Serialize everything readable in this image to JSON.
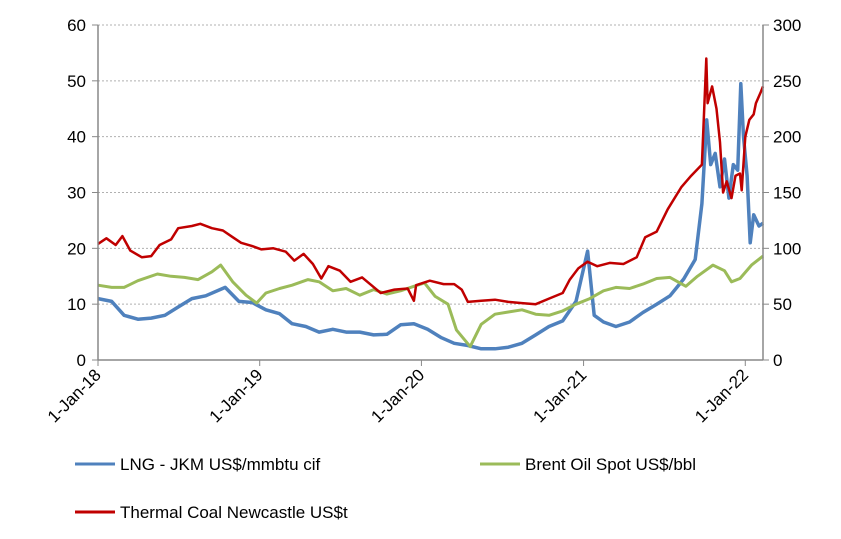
{
  "chart_data": {
    "type": "line",
    "title": "",
    "y_left": {
      "min": 0,
      "max": 60,
      "ticks": [
        "0",
        "10",
        "20",
        "30",
        "40",
        "50",
        "60"
      ]
    },
    "y_right": {
      "min": 0,
      "max": 300,
      "ticks": [
        "0",
        "50",
        "100",
        "150",
        "200",
        "250",
        "300"
      ]
    },
    "x_ticks": [
      "1-Jan-18",
      "1-Jan-19",
      "1-Jan-20",
      "1-Jan-21",
      "1-Jan-22"
    ],
    "x_range": [
      "2018-01-01",
      "2022-02-10"
    ],
    "grid": "horizontal dashed",
    "legend_position": "bottom",
    "series": [
      {
        "name": "LNG - JKM US$/mmbtu cif",
        "axis": "left",
        "color": "#4f81bd",
        "points": [
          [
            "2018-01-01",
            11
          ],
          [
            "2018-02-01",
            10.5
          ],
          [
            "2018-03-01",
            8
          ],
          [
            "2018-04-01",
            7.3
          ],
          [
            "2018-05-01",
            7.5
          ],
          [
            "2018-06-01",
            8
          ],
          [
            "2018-07-01",
            9.5
          ],
          [
            "2018-08-01",
            11
          ],
          [
            "2018-09-01",
            11.5
          ],
          [
            "2018-10-15",
            13
          ],
          [
            "2018-11-15",
            10.5
          ],
          [
            "2018-12-15",
            10.3
          ],
          [
            "2019-01-15",
            9
          ],
          [
            "2019-02-15",
            8.3
          ],
          [
            "2019-03-15",
            6.5
          ],
          [
            "2019-04-15",
            6
          ],
          [
            "2019-05-15",
            5
          ],
          [
            "2019-06-15",
            5.5
          ],
          [
            "2019-07-15",
            5
          ],
          [
            "2019-08-15",
            5
          ],
          [
            "2019-09-15",
            4.5
          ],
          [
            "2019-10-15",
            4.6
          ],
          [
            "2019-11-15",
            6.3
          ],
          [
            "2019-12-15",
            6.5
          ],
          [
            "2020-01-15",
            5.5
          ],
          [
            "2020-02-15",
            4
          ],
          [
            "2020-03-15",
            3
          ],
          [
            "2020-04-15",
            2.6
          ],
          [
            "2020-05-15",
            2
          ],
          [
            "2020-06-15",
            2
          ],
          [
            "2020-07-15",
            2.3
          ],
          [
            "2020-08-15",
            3
          ],
          [
            "2020-09-15",
            4.5
          ],
          [
            "2020-10-15",
            6
          ],
          [
            "2020-11-15",
            7
          ],
          [
            "2020-12-15",
            10.5
          ],
          [
            "2021-01-10",
            19.5
          ],
          [
            "2021-01-25",
            8
          ],
          [
            "2021-02-15",
            6.8
          ],
          [
            "2021-03-15",
            6
          ],
          [
            "2021-04-15",
            6.8
          ],
          [
            "2021-05-15",
            8.5
          ],
          [
            "2021-06-15",
            10
          ],
          [
            "2021-07-15",
            11.5
          ],
          [
            "2021-08-15",
            14.5
          ],
          [
            "2021-09-10",
            18
          ],
          [
            "2021-09-25",
            28
          ],
          [
            "2021-10-06",
            43
          ],
          [
            "2021-10-15",
            35
          ],
          [
            "2021-10-25",
            37
          ],
          [
            "2021-11-05",
            31
          ],
          [
            "2021-11-15",
            36
          ],
          [
            "2021-11-25",
            29
          ],
          [
            "2021-12-05",
            35
          ],
          [
            "2021-12-15",
            34
          ],
          [
            "2021-12-22",
            49.5
          ],
          [
            "2021-12-28",
            40
          ],
          [
            "2022-01-05",
            33
          ],
          [
            "2022-01-12",
            21
          ],
          [
            "2022-01-20",
            26
          ],
          [
            "2022-02-01",
            24
          ],
          [
            "2022-02-10",
            24.5
          ]
        ]
      },
      {
        "name": "Brent Oil Spot US$/bbl",
        "axis": "right",
        "color": "#9bbb59",
        "points": [
          [
            "2018-01-01",
            67
          ],
          [
            "2018-02-01",
            65
          ],
          [
            "2018-03-01",
            65
          ],
          [
            "2018-04-01",
            71
          ],
          [
            "2018-05-15",
            77
          ],
          [
            "2018-06-15",
            75
          ],
          [
            "2018-07-15",
            74
          ],
          [
            "2018-08-15",
            72
          ],
          [
            "2018-09-15",
            79
          ],
          [
            "2018-10-05",
            85
          ],
          [
            "2018-11-01",
            70
          ],
          [
            "2018-12-01",
            58
          ],
          [
            "2018-12-25",
            51
          ],
          [
            "2019-01-15",
            60
          ],
          [
            "2019-02-15",
            64
          ],
          [
            "2019-03-15",
            67
          ],
          [
            "2019-04-20",
            72
          ],
          [
            "2019-05-15",
            70
          ],
          [
            "2019-06-15",
            62
          ],
          [
            "2019-07-15",
            64
          ],
          [
            "2019-08-15",
            58
          ],
          [
            "2019-09-15",
            63
          ],
          [
            "2019-10-15",
            59
          ],
          [
            "2019-11-15",
            62
          ],
          [
            "2019-12-15",
            66
          ],
          [
            "2020-01-08",
            69
          ],
          [
            "2020-02-01",
            57
          ],
          [
            "2020-03-01",
            50
          ],
          [
            "2020-03-20",
            27
          ],
          [
            "2020-04-20",
            12
          ],
          [
            "2020-05-15",
            32
          ],
          [
            "2020-06-15",
            41
          ],
          [
            "2020-07-15",
            43
          ],
          [
            "2020-08-15",
            45
          ],
          [
            "2020-09-15",
            41
          ],
          [
            "2020-10-15",
            40
          ],
          [
            "2020-11-15",
            44
          ],
          [
            "2020-12-15",
            50
          ],
          [
            "2021-01-15",
            55
          ],
          [
            "2021-02-15",
            62
          ],
          [
            "2021-03-15",
            65
          ],
          [
            "2021-04-15",
            64
          ],
          [
            "2021-05-15",
            68
          ],
          [
            "2021-06-15",
            73
          ],
          [
            "2021-07-15",
            74
          ],
          [
            "2021-08-20",
            66
          ],
          [
            "2021-09-15",
            75
          ],
          [
            "2021-10-20",
            85
          ],
          [
            "2021-11-15",
            80
          ],
          [
            "2021-12-01",
            70
          ],
          [
            "2021-12-20",
            73
          ],
          [
            "2022-01-15",
            85
          ],
          [
            "2022-02-10",
            93
          ]
        ]
      },
      {
        "name": "Thermal Coal Newcastle US$t",
        "axis": "right",
        "color": "#c00000",
        "points": [
          [
            "2018-01-01",
            104
          ],
          [
            "2018-01-20",
            109
          ],
          [
            "2018-02-10",
            103
          ],
          [
            "2018-02-25",
            111
          ],
          [
            "2018-03-15",
            98
          ],
          [
            "2018-04-10",
            92
          ],
          [
            "2018-05-01",
            93
          ],
          [
            "2018-05-20",
            103
          ],
          [
            "2018-06-15",
            108
          ],
          [
            "2018-07-01",
            118
          ],
          [
            "2018-08-01",
            120
          ],
          [
            "2018-08-20",
            122
          ],
          [
            "2018-09-15",
            118
          ],
          [
            "2018-10-10",
            116
          ],
          [
            "2018-11-01",
            110
          ],
          [
            "2018-11-20",
            105
          ],
          [
            "2018-12-15",
            102
          ],
          [
            "2019-01-05",
            99
          ],
          [
            "2019-02-01",
            100
          ],
          [
            "2019-03-01",
            97
          ],
          [
            "2019-03-20",
            89
          ],
          [
            "2019-04-10",
            95
          ],
          [
            "2019-05-01",
            86
          ],
          [
            "2019-05-20",
            73
          ],
          [
            "2019-06-05",
            84
          ],
          [
            "2019-07-01",
            80
          ],
          [
            "2019-07-25",
            70
          ],
          [
            "2019-08-20",
            74
          ],
          [
            "2019-09-10",
            67
          ],
          [
            "2019-10-01",
            60
          ],
          [
            "2019-11-01",
            63
          ],
          [
            "2019-12-01",
            64
          ],
          [
            "2019-12-15",
            53
          ],
          [
            "2019-12-20",
            67
          ],
          [
            "2020-01-20",
            71
          ],
          [
            "2020-02-20",
            68
          ],
          [
            "2020-03-15",
            68
          ],
          [
            "2020-04-01",
            63
          ],
          [
            "2020-04-15",
            52
          ],
          [
            "2020-05-15",
            53
          ],
          [
            "2020-06-15",
            54
          ],
          [
            "2020-07-15",
            52
          ],
          [
            "2020-08-15",
            51
          ],
          [
            "2020-09-15",
            50
          ],
          [
            "2020-10-15",
            55
          ],
          [
            "2020-11-15",
            60
          ],
          [
            "2020-12-01",
            72
          ],
          [
            "2020-12-20",
            82
          ],
          [
            "2021-01-10",
            88
          ],
          [
            "2021-02-01",
            84
          ],
          [
            "2021-03-01",
            87
          ],
          [
            "2021-04-01",
            86
          ],
          [
            "2021-05-01",
            92
          ],
          [
            "2021-05-20",
            110
          ],
          [
            "2021-06-15",
            115
          ],
          [
            "2021-07-10",
            135
          ],
          [
            "2021-08-10",
            155
          ],
          [
            "2021-09-01",
            165
          ],
          [
            "2021-09-25",
            175
          ],
          [
            "2021-10-05",
            270
          ],
          [
            "2021-10-08",
            230
          ],
          [
            "2021-10-18",
            245
          ],
          [
            "2021-10-28",
            225
          ],
          [
            "2021-11-05",
            195
          ],
          [
            "2021-11-12",
            150
          ],
          [
            "2021-11-20",
            160
          ],
          [
            "2021-12-01",
            145
          ],
          [
            "2021-12-10",
            165
          ],
          [
            "2021-12-20",
            167
          ],
          [
            "2021-12-24",
            152
          ],
          [
            "2022-01-01",
            200
          ],
          [
            "2022-01-10",
            215
          ],
          [
            "2022-01-20",
            220
          ],
          [
            "2022-01-25",
            230
          ],
          [
            "2022-02-05",
            240
          ],
          [
            "2022-02-10",
            245
          ]
        ]
      }
    ]
  }
}
